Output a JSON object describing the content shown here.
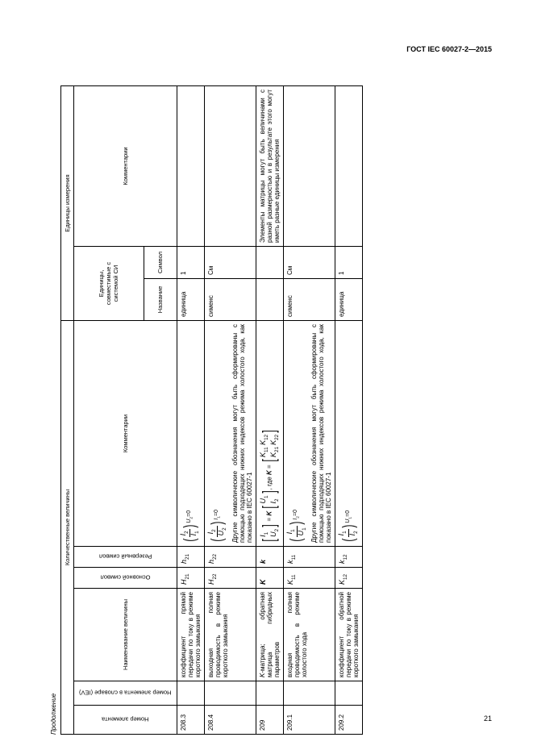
{
  "header": "ГОСТ IEC 60027-2—2015",
  "continuation": "Продолжение",
  "page_number": "21",
  "group_headers": {
    "qty": "Количественные величины",
    "units": "Единицы измерения"
  },
  "col_headers": {
    "item_no": "Номер элемента",
    "iev_no": "Номер элемента в словаре (IEV)",
    "qty_name": "Наименование величины",
    "main_sym": "Основной символ",
    "reserve_sym": "Резервный символ",
    "comments": "Комментарии",
    "si_unit": "Единицы, совместимые с системой СИ",
    "si_name": "Название",
    "si_sym": "Символ",
    "unit_comments": "Комментарии"
  },
  "unit_names": {
    "one": "единица",
    "siemens": "сименс"
  },
  "unit_syms": {
    "one": "1",
    "siemens": "См"
  },
  "rows": [
    {
      "no": "208.3",
      "name": "коэффициент прямой передачи по току в режиме короткого замыкания",
      "main_sym_html": "<i>H</i><sub>21</sub>",
      "res_sym_html": "<i>h</i><sub>21</sub>",
      "formula": {
        "type": "ratio",
        "num": "<i>I</i><sub>2</sub>",
        "den": "<i>I</i><sub>1</sub>",
        "cond": "<i>U</i><sub>2</sub>=0"
      },
      "extra_text": "",
      "unit_name_key": "one",
      "unit_sym_key": "one",
      "ucomment": ""
    },
    {
      "no": "208.4",
      "name": "выходная полная проводимость в режиме короткого замыкания",
      "main_sym_html": "<i>H</i><sub>22</sub>",
      "res_sym_html": "<i>h</i><sub>22</sub>",
      "formula": {
        "type": "ratio",
        "num": "<i>I</i><sub>2</sub>",
        "den": "<i>U</i><sub>2</sub>",
        "cond": "<i>I</i><sub>1</sub>=0"
      },
      "extra_text": "Другие символические обозначения могут быть сформированы с помощью подходящих нижних индексов режима холостого хода, как показано в IEC 60027-1",
      "unit_name_key": "siemens",
      "unit_sym_key": "siemens",
      "ucomment": ""
    },
    {
      "no": "209",
      "name": "<i>K</i>-матрица; обратная матрица гибридных параметров",
      "main_sym_html": "<b><i>K</i></b>",
      "res_sym_html": "<b><i>k</i></b>",
      "formula": {
        "type": "matrix"
      },
      "extra_text": "",
      "unit_name_key": "",
      "unit_sym_key": "",
      "ucomment": "Элементы матрицы могут быть величинами с разной размерностью и в результате этого могут иметь разные единицы измерения"
    },
    {
      "no": "209.1",
      "name": "входная полная проводимость в режиме холостого хода",
      "main_sym_html": "<i>K</i><sub>11</sub>",
      "res_sym_html": "<i>k</i><sub>11</sub>",
      "formula": {
        "type": "ratio",
        "num": "<i>I</i><sub>1</sub>",
        "den": "<i>U</i><sub>1</sub>",
        "cond": "<i>I</i><sub>2</sub>=0"
      },
      "extra_text": "Другие символические обозначения могут быть сформированы с помощью подходящих нижних индексов режима холостого хода, как показано в IEC 60027-1",
      "unit_name_key": "siemens",
      "unit_sym_key": "siemens",
      "ucomment": ""
    },
    {
      "no": "209.2",
      "name": "коэффициент обратной передачи по току в режиме короткого замыкания",
      "main_sym_html": "<i>K</i><sub>12</sub>",
      "res_sym_html": "<i>k</i><sub>12</sub>",
      "formula": {
        "type": "ratio",
        "num": "<i>I</i><sub>1</sub>",
        "den": "<i>I</i><sub>2</sub>",
        "cond": "<i>U</i><sub>1</sub>=0"
      },
      "extra_text": "",
      "unit_name_key": "one",
      "unit_sym_key": "one",
      "ucomment": ""
    }
  ],
  "matrix_eq": {
    "left_items": [
      "<i>I</i><sub>1</sub>",
      "<i>U</i><sub>2</sub>"
    ],
    "right_items": [
      "<i>U</i><sub>1</sub>",
      "<i>I</i><sub>2</sub>"
    ],
    "k_items": [
      [
        "<i>K</i><sub>11</sub>",
        "<i>K</i><sub>12</sub>"
      ],
      [
        "<i>K</i><sub>21</sub>",
        "<i>K</i><sub>22</sub>"
      ]
    ],
    "where": ", где <b><i>K</i></b> = "
  }
}
